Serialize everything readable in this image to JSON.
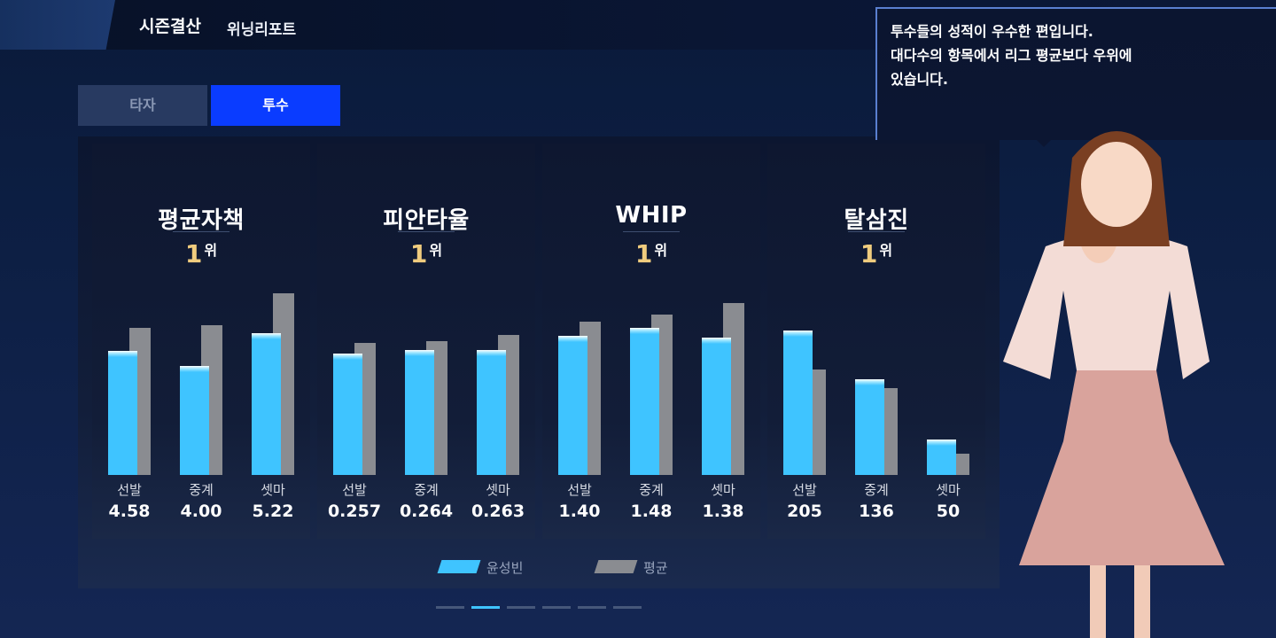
{
  "header": {
    "title": "시즌결산",
    "subtitle": "위닝리포트"
  },
  "tabs": [
    {
      "label": "타자",
      "active": false
    },
    {
      "label": "투수",
      "active": true
    }
  ],
  "speech": {
    "lines": [
      "투수들의 성적이 우수한 편입니다.",
      "대다수의 항목에서 리그 평균보다 우위에",
      "있습니다."
    ]
  },
  "rank_unit": "위",
  "categories": [
    "선발",
    "중계",
    "셋마"
  ],
  "chart_data": [
    {
      "type": "bar",
      "title": "평균자책",
      "rank": "1",
      "categories": [
        "선발",
        "중계",
        "셋마"
      ],
      "series": [
        {
          "name": "윤성빈",
          "values": [
            4.58,
            4.0,
            5.22
          ]
        },
        {
          "name": "평균",
          "values": [
            5.4,
            5.5,
            6.7
          ]
        }
      ],
      "labels": [
        "4.58",
        "4.00",
        "5.22"
      ],
      "ylim": [
        0,
        7.5
      ]
    },
    {
      "type": "bar",
      "title": "피안타율",
      "rank": "1",
      "categories": [
        "선발",
        "중계",
        "셋마"
      ],
      "series": [
        {
          "name": "윤성빈",
          "values": [
            0.257,
            0.264,
            0.263
          ]
        },
        {
          "name": "평균",
          "values": [
            0.279,
            0.282,
            0.295
          ]
        }
      ],
      "labels": [
        "0.257",
        "0.264",
        "0.263"
      ],
      "ylim": [
        0,
        0.43
      ]
    },
    {
      "type": "bar",
      "title": "WHIP",
      "rank": "1",
      "categories": [
        "선발",
        "중계",
        "셋마"
      ],
      "series": [
        {
          "name": "윤성빈",
          "values": [
            1.4,
            1.48,
            1.38
          ]
        },
        {
          "name": "평균",
          "values": [
            1.54,
            1.61,
            1.73
          ]
        }
      ],
      "labels": [
        "1.40",
        "1.48",
        "1.38"
      ],
      "ylim": [
        0,
        2.05
      ]
    },
    {
      "type": "bar",
      "title": "탈삼진",
      "rank": "1",
      "categories": [
        "선발",
        "중계",
        "셋마"
      ],
      "series": [
        {
          "name": "윤성빈",
          "values": [
            205,
            136,
            50
          ]
        },
        {
          "name": "평균",
          "values": [
            150,
            123,
            30
          ]
        }
      ],
      "labels": [
        "205",
        "136",
        "50"
      ],
      "ylim": [
        0,
        290
      ]
    }
  ],
  "legend": [
    {
      "name": "윤성빈",
      "color": "#3fc4ff"
    },
    {
      "name": "평균",
      "color": "#8a8c91"
    }
  ],
  "pagination": {
    "count": 6,
    "active": 1
  }
}
